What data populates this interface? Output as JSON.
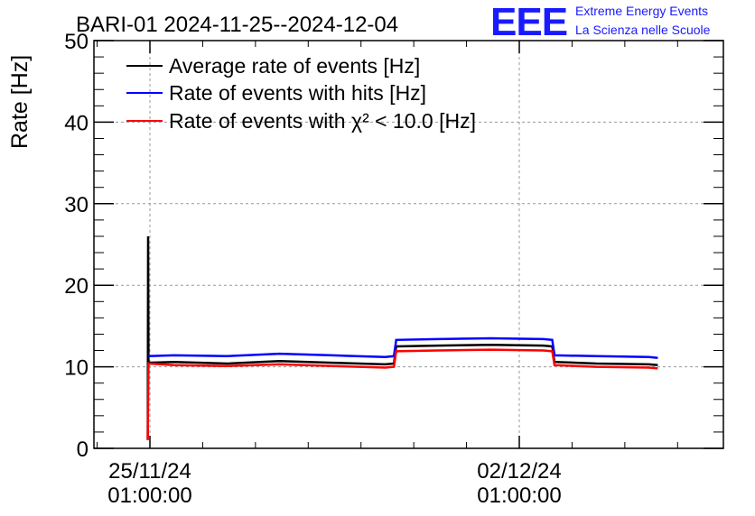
{
  "chart_data": {
    "type": "line",
    "title": "BARI-01 2024-11-25--2024-12-04",
    "ylabel": "Rate [Hz]",
    "xlabel": "",
    "ylim": [
      0,
      50
    ],
    "yticks": [
      0,
      10,
      20,
      30,
      40,
      50
    ],
    "x_tick_labels": [
      {
        "date": "25/11/24",
        "time": "01:00:00"
      },
      {
        "date": "02/12/24",
        "time": "01:00:00"
      }
    ],
    "grid": true,
    "legend_position": "top-left",
    "series": [
      {
        "name": "Average rate of events [Hz]",
        "color": "#000000",
        "points": [
          [
            "2024-11-25 00:00",
            1.2
          ],
          [
            "2024-11-25 00:10",
            26.0
          ],
          [
            "2024-11-25 00:20",
            10.5
          ],
          [
            "2024-11-25 12:00",
            10.6
          ],
          [
            "2024-11-26 12:00",
            10.4
          ],
          [
            "2024-11-27 12:00",
            10.7
          ],
          [
            "2024-11-28 12:00",
            10.5
          ],
          [
            "2024-11-29 12:00",
            10.3
          ],
          [
            "2024-11-29 16:00",
            10.4
          ],
          [
            "2024-11-29 17:00",
            12.5
          ],
          [
            "2024-11-30 12:00",
            12.6
          ],
          [
            "2024-12-01 12:00",
            12.7
          ],
          [
            "2024-12-02 12:00",
            12.6
          ],
          [
            "2024-12-02 16:00",
            12.5
          ],
          [
            "2024-12-02 17:00",
            10.6
          ],
          [
            "2024-12-03 12:00",
            10.4
          ],
          [
            "2024-12-04 12:00",
            10.3
          ],
          [
            "2024-12-04 16:00",
            10.2
          ]
        ]
      },
      {
        "name": "Rate of events with hits [Hz]",
        "color": "#0000ff",
        "points": [
          [
            "2024-11-25 00:20",
            11.3
          ],
          [
            "2024-11-25 12:00",
            11.4
          ],
          [
            "2024-11-26 12:00",
            11.3
          ],
          [
            "2024-11-27 12:00",
            11.6
          ],
          [
            "2024-11-28 12:00",
            11.4
          ],
          [
            "2024-11-29 12:00",
            11.2
          ],
          [
            "2024-11-29 16:00",
            11.3
          ],
          [
            "2024-11-29 17:00",
            13.3
          ],
          [
            "2024-11-30 12:00",
            13.4
          ],
          [
            "2024-12-01 12:00",
            13.5
          ],
          [
            "2024-12-02 12:00",
            13.4
          ],
          [
            "2024-12-02 16:00",
            13.3
          ],
          [
            "2024-12-02 17:00",
            11.4
          ],
          [
            "2024-12-03 12:00",
            11.3
          ],
          [
            "2024-12-04 12:00",
            11.2
          ],
          [
            "2024-12-04 16:00",
            11.1
          ]
        ]
      },
      {
        "name": "Rate of events with χ² < 10.0 [Hz]",
        "color": "#ff0000",
        "points": [
          [
            "2024-11-25 00:00",
            1.0
          ],
          [
            "2024-11-25 00:20",
            10.4
          ],
          [
            "2024-11-25 12:00",
            10.2
          ],
          [
            "2024-11-26 12:00",
            10.1
          ],
          [
            "2024-11-27 12:00",
            10.3
          ],
          [
            "2024-11-28 12:00",
            10.1
          ],
          [
            "2024-11-29 12:00",
            9.9
          ],
          [
            "2024-11-29 16:00",
            10.0
          ],
          [
            "2024-11-29 17:00",
            11.9
          ],
          [
            "2024-11-30 12:00",
            12.0
          ],
          [
            "2024-12-01 12:00",
            12.1
          ],
          [
            "2024-12-02 12:00",
            12.0
          ],
          [
            "2024-12-02 16:00",
            11.9
          ],
          [
            "2024-12-02 17:00",
            10.2
          ],
          [
            "2024-12-03 12:00",
            10.0
          ],
          [
            "2024-12-04 12:00",
            9.9
          ],
          [
            "2024-12-04 16:00",
            9.8
          ]
        ]
      }
    ]
  },
  "logo": {
    "mark": "EEE",
    "line1": "Extreme Energy Events",
    "line2": "La Scienza nelle Scuole",
    "color": "#1a1aff"
  }
}
